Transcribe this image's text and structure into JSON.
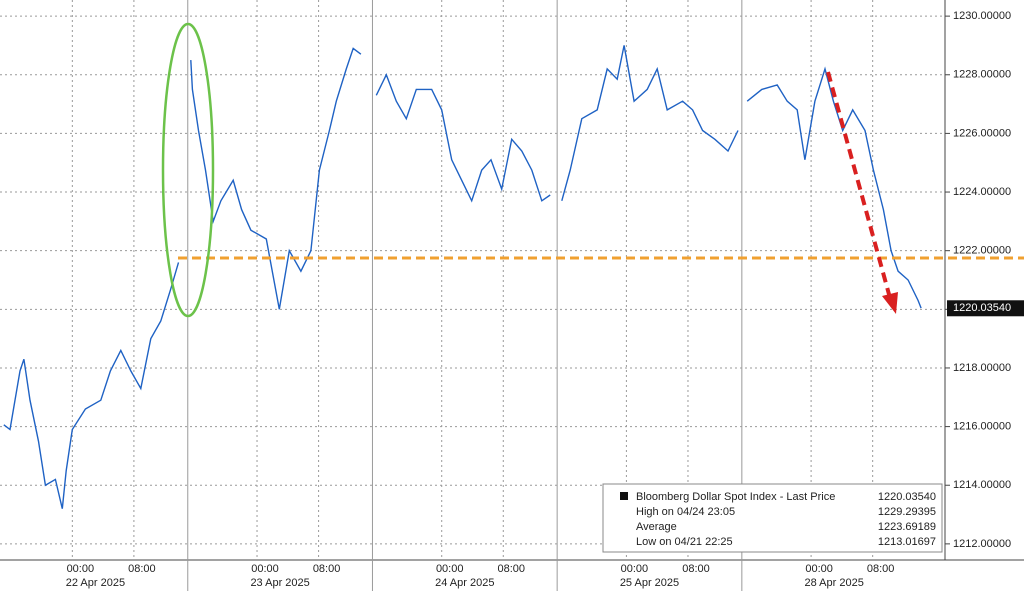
{
  "chart_data": {
    "type": "line",
    "x": [
      -8.9,
      -8.1,
      -6.8,
      -6.3,
      -5.5,
      -4.4,
      -3.5,
      -2.2,
      -1.3,
      -0.8,
      0,
      1.7,
      3.7,
      4.95,
      6.3,
      7.6,
      8.9,
      10.2,
      11.5,
      12.8,
      13.8,
      15,
      15.4,
      15.6,
      16.4,
      17.3,
      18.3,
      19.3,
      20.9,
      22.0,
      23.2,
      25.2,
      26.9,
      28.2,
      29.7,
      31.0,
      32.1,
      33.4,
      34.3,
      35.6,
      36.5,
      37.5,
      39,
      39.5,
      40.8,
      42.1,
      43.4,
      44.7,
      46.7,
      48.0,
      49.3,
      50.6,
      51.9,
      53.2,
      54.4,
      55.8,
      57.1,
      58.4,
      59.7,
      61.0,
      62.1,
      63,
      63.6,
      64.7,
      66.2,
      68.2,
      69.5,
      70.8,
      71.7,
      73.0,
      74.7,
      76.0,
      77.3,
      79.3,
      80.6,
      81.9,
      83.5,
      85.2,
      86.5,
      87,
      87.7,
      89.6,
      91.6,
      92.9,
      94.2,
      95.2,
      96.5,
      97.8,
      98.9,
      100.1,
      101.4,
      103.0,
      104.1,
      105.4,
      106.4,
      107.3,
      108.6,
      109.9,
      110.3
    ],
    "series": [
      {
        "name": "Bloomberg Dollar Spot Index - Last Price",
        "color": "#1f62c4",
        "values": [
          1216.06,
          1215.9,
          1217.9,
          1218.3,
          1216.9,
          1215.5,
          1214.0,
          1214.2,
          1213.2,
          1214.5,
          1215.9,
          1216.6,
          1216.9,
          1217.9,
          1218.6,
          1217.9,
          1217.3,
          1219.0,
          1219.6,
          1220.7,
          1221.6,
          null,
          1228.5,
          1227.5,
          1226.1,
          1224.75,
          1223.0,
          1223.7,
          1224.4,
          1223.4,
          1222.7,
          1222.4,
          1220.0,
          1222.0,
          1221.3,
          1222.0,
          1224.75,
          1226.1,
          1227.1,
          1228.2,
          1228.9,
          1228.7,
          null,
          1227.3,
          1228.0,
          1227.1,
          1226.5,
          1227.5,
          1227.5,
          1226.8,
          1225.1,
          1224.4,
          1223.7,
          1224.75,
          1225.1,
          1224.1,
          1225.8,
          1225.4,
          1224.75,
          1223.7,
          1223.9,
          null,
          1223.7,
          1224.75,
          1226.5,
          1226.8,
          1228.2,
          1227.85,
          1229.0,
          1227.1,
          1227.5,
          1228.2,
          1226.8,
          1227.1,
          1226.8,
          1226.1,
          1225.8,
          1225.4,
          1226.1,
          null,
          1227.1,
          1227.5,
          1227.65,
          1227.1,
          1226.8,
          1225.1,
          1227.1,
          1228.2,
          1227.1,
          1226.1,
          1226.8,
          1226.1,
          1224.75,
          1223.4,
          1222.0,
          1221.3,
          1221.0,
          1220.3,
          1220.04
        ]
      }
    ],
    "xlim": [
      -9.4,
      113.4
    ],
    "ylim": [
      1211.45,
      1230.55
    ],
    "xticks": [
      {
        "value": 0,
        "label": "00:00"
      },
      {
        "value": 8,
        "label": "08:00"
      },
      {
        "value": 24,
        "label": "00:00"
      },
      {
        "value": 32,
        "label": "08:00"
      },
      {
        "value": 48,
        "label": "00:00"
      },
      {
        "value": 56,
        "label": "08:00"
      },
      {
        "value": 72,
        "label": "00:00"
      },
      {
        "value": 80,
        "label": "08:00"
      },
      {
        "value": 96,
        "label": "00:00"
      },
      {
        "value": 104,
        "label": "08:00"
      }
    ],
    "date_labels": [
      {
        "value": 3,
        "label": "22 Apr 2025"
      },
      {
        "value": 27,
        "label": "23 Apr 2025"
      },
      {
        "value": 51,
        "label": "24 Apr 2025"
      },
      {
        "value": 75,
        "label": "25 Apr 2025"
      },
      {
        "value": 99,
        "label": "28 Apr 2025"
      }
    ],
    "session_breaks": [
      15,
      39,
      63,
      87
    ],
    "yticks": [
      {
        "value": 1212,
        "label": "1212.00000"
      },
      {
        "value": 1214,
        "label": "1214.00000"
      },
      {
        "value": 1216,
        "label": "1216.00000"
      },
      {
        "value": 1218,
        "label": "1218.00000"
      },
      {
        "value": 1220,
        "label": "1220.00000"
      },
      {
        "value": 1222,
        "label": "1222.00000"
      },
      {
        "value": 1224,
        "label": "1224.00000"
      },
      {
        "value": 1226,
        "label": "1226.00000"
      },
      {
        "value": 1228,
        "label": "1228.00000"
      },
      {
        "value": 1230,
        "label": "1230.00000"
      }
    ],
    "reference_line": {
      "value": 1221.75,
      "color": "#f0a030"
    },
    "last_price": {
      "value": 1220.0354,
      "label": "1220.03540"
    },
    "grid": true,
    "legend_rows": [
      {
        "label": "Bloomberg Dollar Spot Index - Last Price",
        "value": "1220.03540"
      },
      {
        "label": "High on 04/24 23:05",
        "value": "1229.29395"
      },
      {
        "label": "Average",
        "value": "1223.69189"
      },
      {
        "label": "Low on 04/21 22:25",
        "value": "1213.01697"
      }
    ]
  }
}
